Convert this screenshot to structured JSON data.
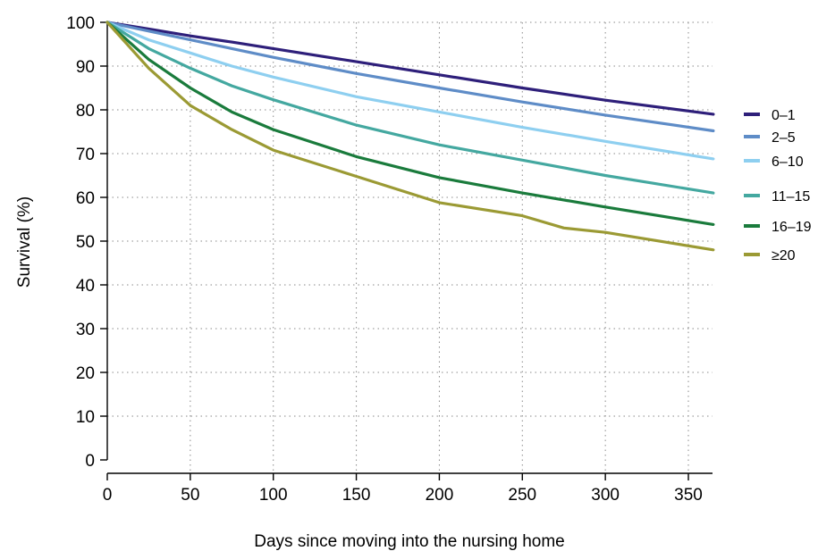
{
  "chart_data": {
    "type": "line",
    "xlabel": "Days since moving into the nursing home",
    "ylabel": "Survival (%)",
    "xlim": [
      0,
      365
    ],
    "ylim": [
      0,
      100
    ],
    "x_ticks": [
      0,
      50,
      100,
      150,
      200,
      250,
      300,
      350
    ],
    "y_ticks": [
      0,
      10,
      20,
      30,
      40,
      50,
      60,
      70,
      80,
      90,
      100
    ],
    "grid": "dotted",
    "legend_position": "right",
    "series": [
      {
        "name": "0–1",
        "color": "#2e1f7a",
        "x": [
          0,
          25,
          50,
          75,
          100,
          150,
          200,
          250,
          300,
          365
        ],
        "y": [
          100,
          98.5,
          96.9,
          95.5,
          94.0,
          91.0,
          88.0,
          85.0,
          82.2,
          79.0
        ]
      },
      {
        "name": "2–5",
        "color": "#5e8cc7",
        "x": [
          0,
          25,
          50,
          75,
          100,
          150,
          200,
          250,
          300,
          365
        ],
        "y": [
          100,
          98.0,
          96.0,
          94.0,
          92.0,
          88.3,
          85.0,
          81.8,
          78.8,
          75.2
        ]
      },
      {
        "name": "6–10",
        "color": "#8ecff0",
        "x": [
          0,
          25,
          50,
          75,
          100,
          150,
          200,
          250,
          300,
          365
        ],
        "y": [
          100,
          96.0,
          93.0,
          90.0,
          87.5,
          83.0,
          79.5,
          76.0,
          72.8,
          68.8
        ]
      },
      {
        "name": "11–15",
        "color": "#44a8a0",
        "x": [
          0,
          25,
          50,
          75,
          100,
          150,
          200,
          250,
          300,
          365
        ],
        "y": [
          100,
          94.0,
          89.5,
          85.5,
          82.3,
          76.5,
          72.0,
          68.5,
          65.0,
          61.0
        ]
      },
      {
        "name": "16–19",
        "color": "#1a7b3c",
        "x": [
          0,
          25,
          50,
          75,
          100,
          150,
          200,
          250,
          300,
          365
        ],
        "y": [
          100,
          91.5,
          85.0,
          79.5,
          75.5,
          69.3,
          64.5,
          61.0,
          57.8,
          53.8
        ]
      },
      {
        "name": "≥20",
        "color": "#9b9a34",
        "x": [
          0,
          25,
          50,
          75,
          100,
          150,
          200,
          250,
          275,
          300,
          365
        ],
        "y": [
          100,
          89.5,
          81.0,
          75.5,
          70.8,
          64.8,
          58.8,
          55.8,
          53.0,
          52.0,
          48.0
        ]
      }
    ]
  }
}
